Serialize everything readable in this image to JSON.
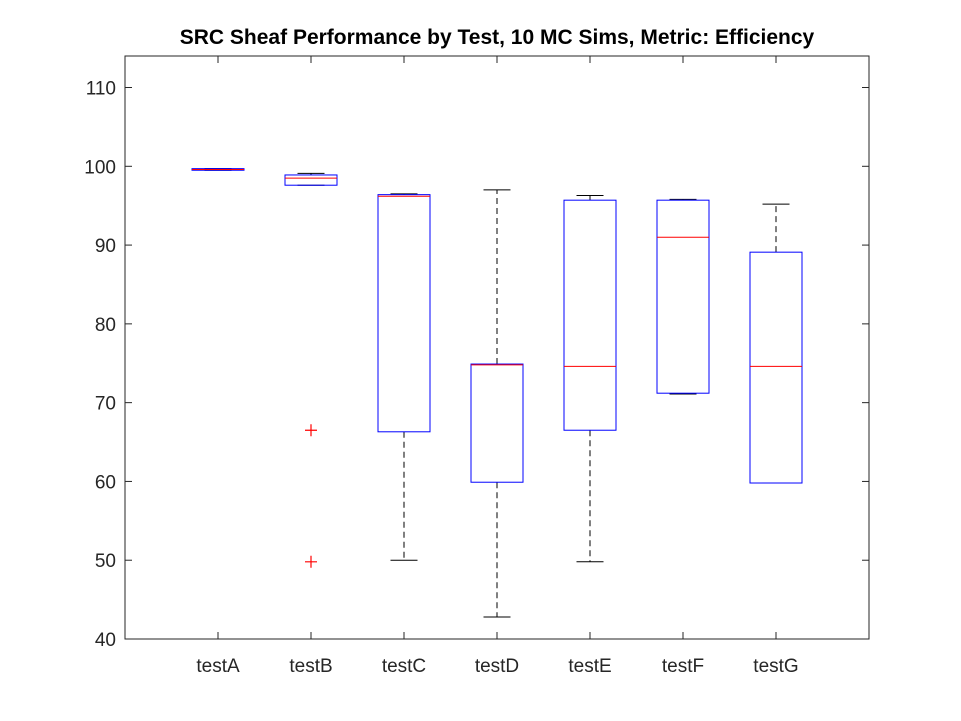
{
  "chart_data": {
    "type": "boxplot",
    "title": "SRC Sheaf Performance by Test, 10 MC Sims, Metric: Efficiency",
    "xlabel": "",
    "ylabel": "",
    "ylim": [
      40,
      114
    ],
    "yticks": [
      40,
      50,
      60,
      70,
      80,
      90,
      100,
      110
    ],
    "grid": false,
    "legend": "none",
    "colors": {
      "box": "#0000ff",
      "median": "#ff0000",
      "whisker": "#000000",
      "outlier": "#ff0000",
      "axis": "#262626"
    },
    "categories": [
      "testA",
      "testB",
      "testC",
      "testD",
      "testE",
      "testF",
      "testG"
    ],
    "boxes": [
      {
        "category": "testA",
        "lower_whisker": 99.5,
        "q1": 99.5,
        "median": 99.6,
        "q3": 99.7,
        "upper_whisker": 99.7,
        "outliers": []
      },
      {
        "category": "testB",
        "lower_whisker": 97.6,
        "q1": 97.6,
        "median": 98.5,
        "q3": 98.9,
        "upper_whisker": 99.1,
        "outliers": [
          66.5,
          49.8
        ]
      },
      {
        "category": "testC",
        "lower_whisker": 50.0,
        "q1": 66.3,
        "median": 96.2,
        "q3": 96.4,
        "upper_whisker": 96.5,
        "outliers": []
      },
      {
        "category": "testD",
        "lower_whisker": 42.8,
        "q1": 59.9,
        "median": 74.8,
        "q3": 74.9,
        "upper_whisker": 97.0,
        "outliers": []
      },
      {
        "category": "testE",
        "lower_whisker": 49.8,
        "q1": 66.5,
        "median": 74.6,
        "q3": 95.7,
        "upper_whisker": 96.3,
        "outliers": []
      },
      {
        "category": "testF",
        "lower_whisker": 71.1,
        "q1": 71.2,
        "median": 91.0,
        "q3": 95.7,
        "upper_whisker": 95.8,
        "outliers": []
      },
      {
        "category": "testG",
        "lower_whisker": 59.8,
        "q1": 59.8,
        "median": 74.6,
        "q3": 89.1,
        "upper_whisker": 95.2,
        "outliers": []
      }
    ]
  }
}
